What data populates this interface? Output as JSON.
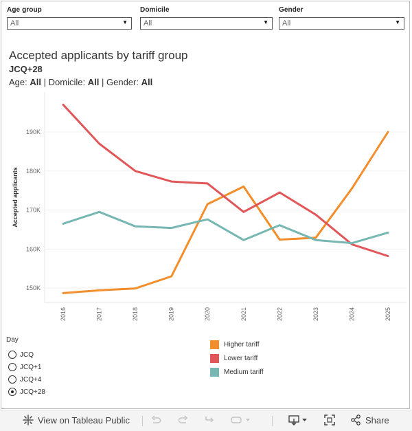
{
  "filters": [
    {
      "label": "Age group",
      "value": "All"
    },
    {
      "label": "Domicile",
      "value": "All"
    },
    {
      "label": "Gender",
      "value": "All"
    }
  ],
  "title": "Accepted applicants by tariff group",
  "subtitle": "JCQ+28",
  "filter_summary": {
    "age_label": "Age:",
    "age_value": "All",
    "domicile_label": "Domicile:",
    "domicile_value": "All",
    "gender_label": "Gender:",
    "gender_value": "All",
    "separator": "|"
  },
  "chart_data": {
    "type": "line",
    "title": "Accepted applicants by tariff group",
    "ylabel": "Accepted applicants",
    "xlabel": "",
    "ylim": [
      145000,
      200000
    ],
    "yticks": [
      150000,
      160000,
      170000,
      180000,
      190000
    ],
    "ytick_labels": [
      "150K",
      "160K",
      "170K",
      "180K",
      "190K"
    ],
    "categories": [
      "2016",
      "2017",
      "2018",
      "2019",
      "2020",
      "2021",
      "2022",
      "2023",
      "2024",
      "2025"
    ],
    "series": [
      {
        "name": "Higher tariff",
        "color": "#F28E2B",
        "values": [
          148700,
          149400,
          149900,
          153000,
          171500,
          176000,
          162400,
          162900,
          175500,
          190000
        ]
      },
      {
        "name": "Lower tariff",
        "color": "#E15759",
        "values": [
          197000,
          187000,
          180000,
          177300,
          176800,
          169500,
          174500,
          168800,
          161200,
          158200
        ]
      },
      {
        "name": "Medium tariff",
        "color": "#76B7B2",
        "values": [
          166500,
          169500,
          165800,
          165400,
          167600,
          162300,
          166100,
          162300,
          161500,
          164200
        ]
      }
    ]
  },
  "day_legend": {
    "title": "Day",
    "options": [
      {
        "label": "JCQ",
        "selected": false
      },
      {
        "label": "JCQ+1",
        "selected": false
      },
      {
        "label": "JCQ+4",
        "selected": false
      },
      {
        "label": "JCQ+28",
        "selected": true
      }
    ]
  },
  "toolbar": {
    "view_label": "View on Tableau Public",
    "share_label": "Share"
  }
}
